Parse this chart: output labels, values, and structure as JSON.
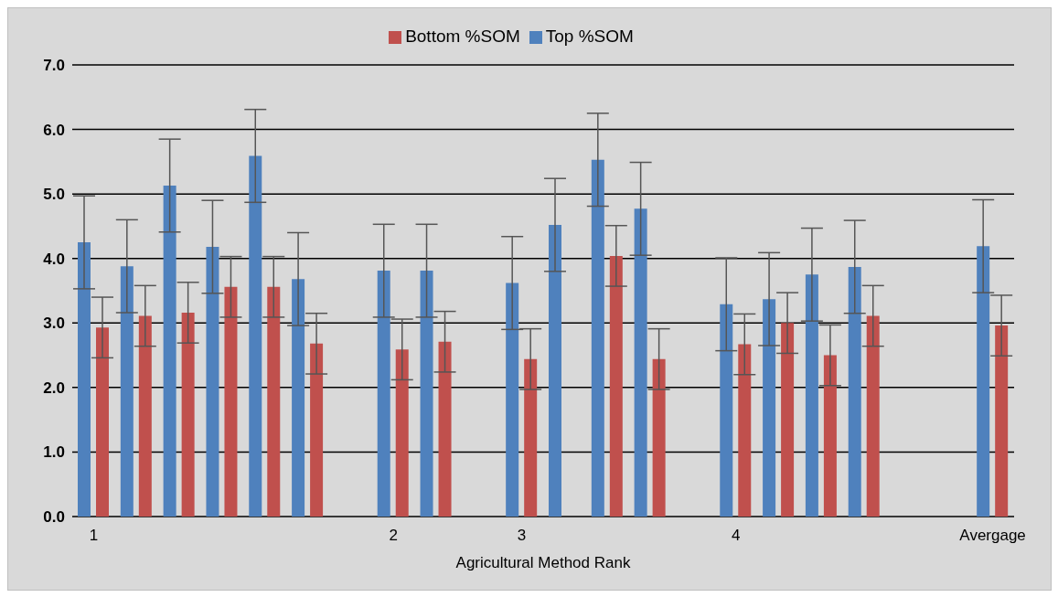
{
  "chart_data": {
    "type": "bar",
    "xlabel": "Agricultural Method Rank",
    "categories": [
      "1",
      null,
      null,
      null,
      null,
      null,
      null,
      "2",
      null,
      null,
      "3",
      null,
      null,
      null,
      null,
      "4",
      null,
      null,
      null,
      null,
      null,
      "Avergage"
    ],
    "series": [
      {
        "name": "Top %SOM",
        "color": "#4f81bd",
        "values": [
          4.25,
          3.88,
          5.13,
          4.18,
          5.59,
          3.68,
          null,
          3.81,
          3.81,
          null,
          3.62,
          4.52,
          5.53,
          4.77,
          null,
          3.29,
          3.37,
          3.75,
          3.87,
          null,
          null,
          4.19
        ],
        "errors": [
          0.72,
          0.72,
          0.72,
          0.72,
          0.72,
          0.72,
          null,
          0.72,
          0.72,
          null,
          0.72,
          0.72,
          0.72,
          0.72,
          null,
          0.72,
          0.72,
          0.72,
          0.72,
          null,
          null,
          0.72
        ]
      },
      {
        "name": "Bottom %SOM",
        "color": "#c0504d",
        "values": [
          2.93,
          3.11,
          3.16,
          3.56,
          3.56,
          2.68,
          null,
          2.59,
          2.71,
          null,
          2.44,
          null,
          4.04,
          2.44,
          null,
          2.67,
          3.0,
          2.5,
          3.11,
          null,
          null,
          2.96
        ],
        "errors": [
          0.47,
          0.47,
          0.47,
          0.47,
          0.47,
          0.47,
          null,
          0.47,
          0.47,
          null,
          0.47,
          null,
          0.47,
          0.47,
          null,
          0.47,
          0.47,
          0.47,
          0.47,
          null,
          null,
          0.47
        ]
      }
    ],
    "ylim": [
      0,
      7
    ],
    "yticks": [
      {
        "value": 0,
        "label": "0.0"
      },
      {
        "value": 1,
        "label": "1.0"
      },
      {
        "value": 2,
        "label": "2.0"
      },
      {
        "value": 3,
        "label": "3.0"
      },
      {
        "value": 4,
        "label": "4.0"
      },
      {
        "value": 5,
        "label": "5.0"
      },
      {
        "value": 6,
        "label": "6.0"
      },
      {
        "value": 7,
        "label": "7.0"
      }
    ],
    "grid": "y",
    "legend": "top"
  }
}
